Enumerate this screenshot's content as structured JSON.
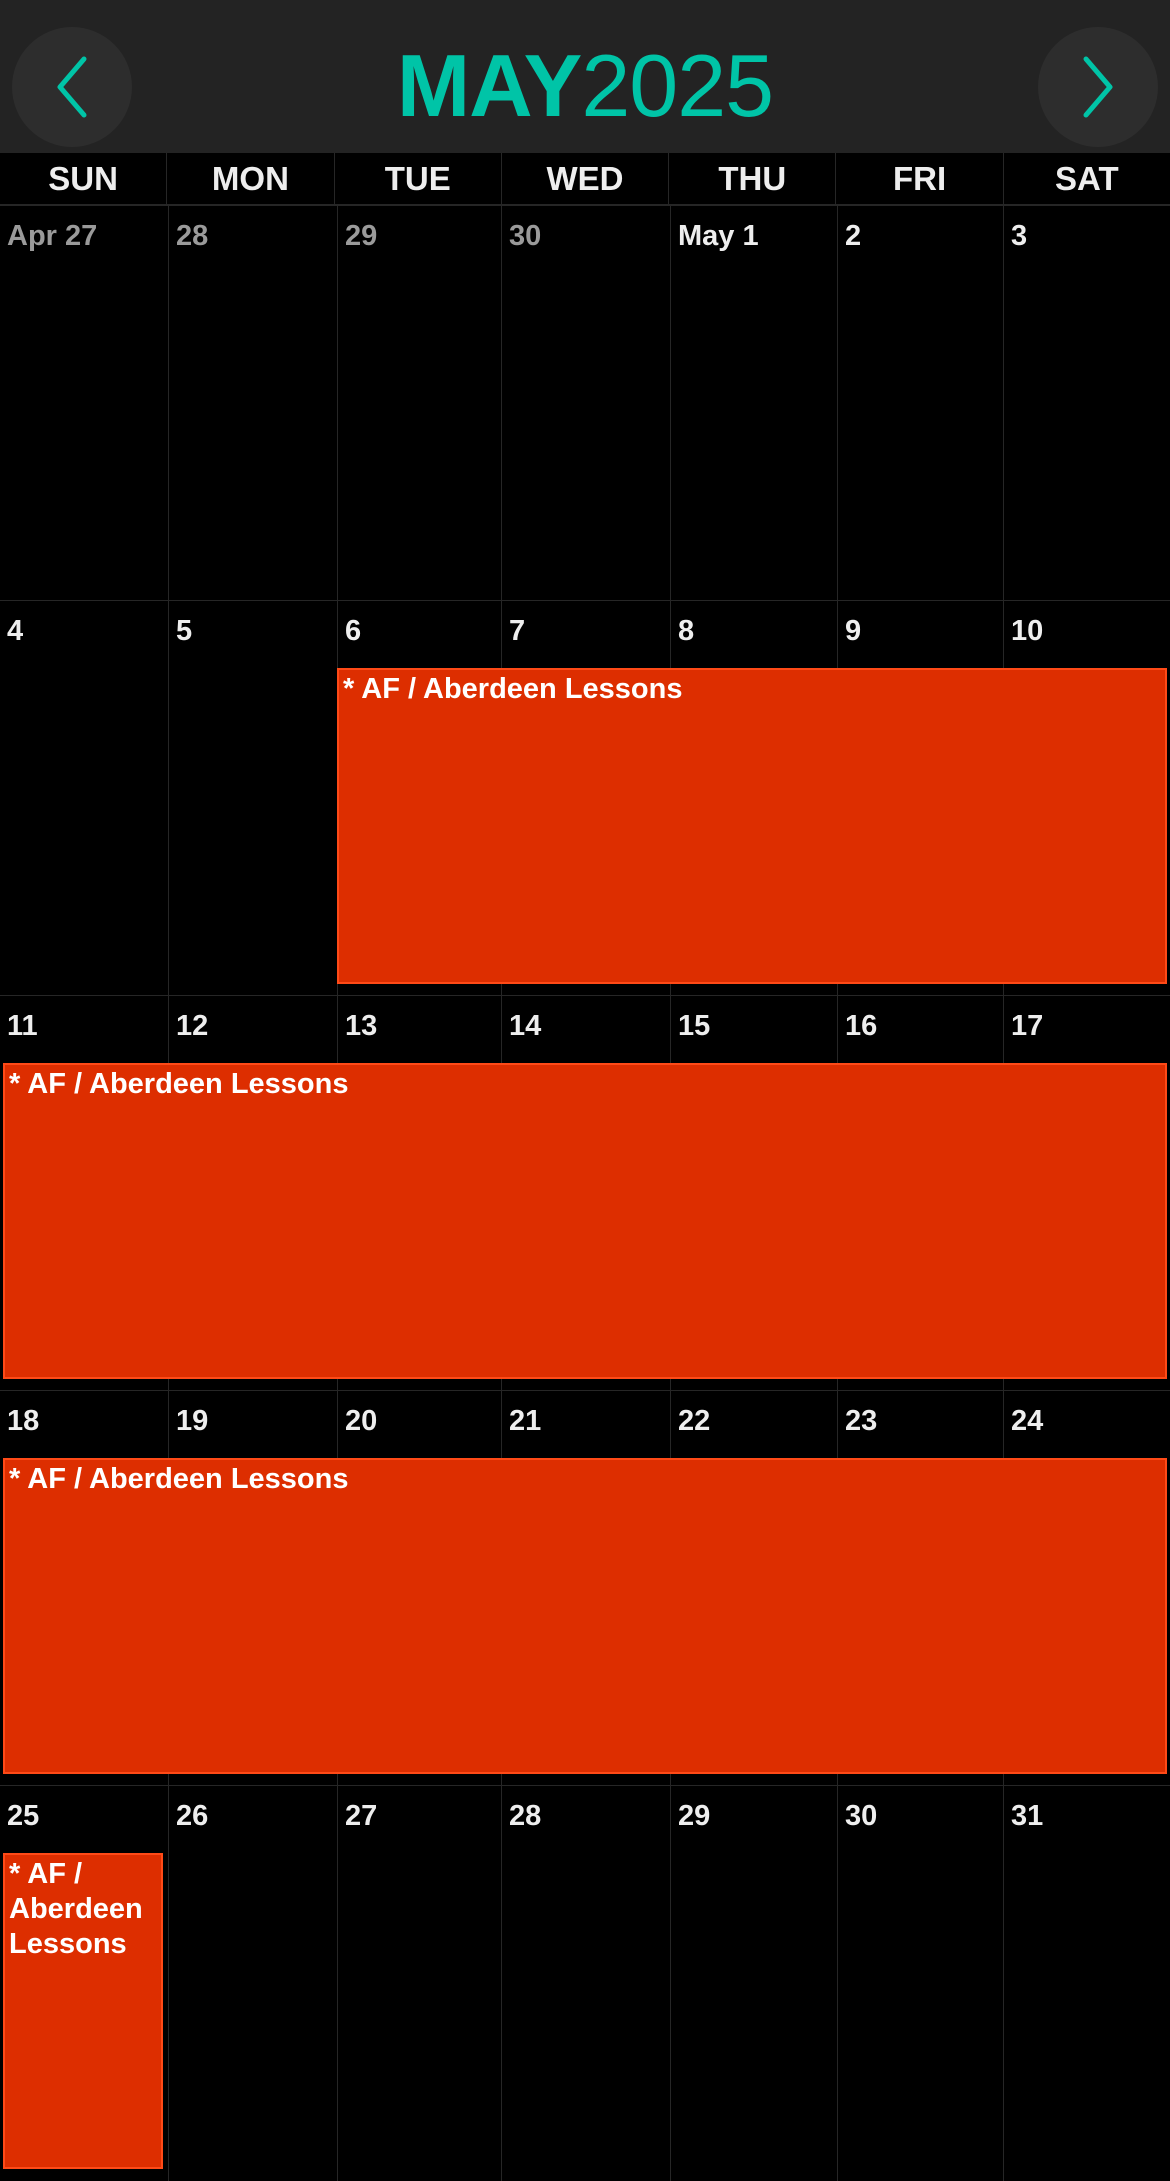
{
  "header": {
    "month": "MAY",
    "year": "2025",
    "accent_color": "#00c4a7",
    "prev_icon": "chevron-left-icon",
    "next_icon": "chevron-right-icon"
  },
  "weekdays": [
    "SUN",
    "MON",
    "TUE",
    "WED",
    "THU",
    "FRI",
    "SAT"
  ],
  "weeks": [
    {
      "days": [
        {
          "label": "Apr 27",
          "other": true
        },
        {
          "label": "28",
          "other": true
        },
        {
          "label": "29",
          "other": true
        },
        {
          "label": "30",
          "other": true
        },
        {
          "label": "May 1"
        },
        {
          "label": "2"
        },
        {
          "label": "3"
        }
      ]
    },
    {
      "days": [
        {
          "label": "4"
        },
        {
          "label": "5"
        },
        {
          "label": "6"
        },
        {
          "label": "7"
        },
        {
          "label": "8"
        },
        {
          "label": "9"
        },
        {
          "label": "10"
        }
      ]
    },
    {
      "days": [
        {
          "label": "11"
        },
        {
          "label": "12"
        },
        {
          "label": "13"
        },
        {
          "label": "14"
        },
        {
          "label": "15"
        },
        {
          "label": "16"
        },
        {
          "label": "17"
        }
      ]
    },
    {
      "days": [
        {
          "label": "18"
        },
        {
          "label": "19"
        },
        {
          "label": "20"
        },
        {
          "label": "21"
        },
        {
          "label": "22"
        },
        {
          "label": "23"
        },
        {
          "label": "24"
        }
      ]
    },
    {
      "days": [
        {
          "label": "25"
        },
        {
          "label": "26"
        },
        {
          "label": "27"
        },
        {
          "label": "28"
        },
        {
          "label": "29"
        },
        {
          "label": "30"
        },
        {
          "label": "31"
        }
      ]
    }
  ],
  "events": [
    {
      "title": "* AF / Aberdeen Lessons",
      "week": 1,
      "start_day": 2,
      "span": 5,
      "color": "#dd2e00"
    },
    {
      "title": "* AF / Aberdeen Lessons",
      "week": 2,
      "start_day": 0,
      "span": 7,
      "color": "#dd2e00"
    },
    {
      "title": "* AF / Aberdeen Lessons",
      "week": 3,
      "start_day": 0,
      "span": 7,
      "color": "#dd2e00"
    },
    {
      "title": "* AF / Aberdeen Lessons",
      "week": 4,
      "start_day": 0,
      "span": 1,
      "color": "#dd2e00"
    }
  ]
}
